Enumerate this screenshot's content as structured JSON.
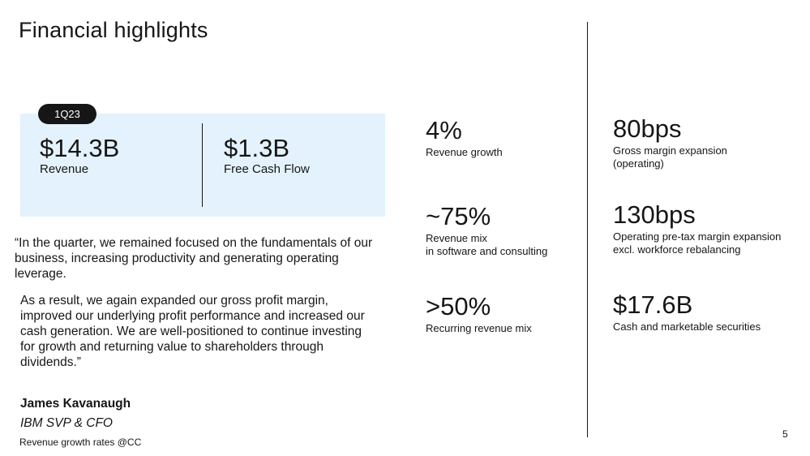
{
  "title": "Financial highlights",
  "highlight": {
    "badge": "1Q23",
    "revenue_value": "$14.3B",
    "revenue_label": "Revenue",
    "fcf_value": "$1.3B",
    "fcf_label": "Free Cash Flow"
  },
  "quote": {
    "para1": "“In the quarter, we remained focused on the fundamentals of our business, increasing productivity and generating operating leverage.",
    "para2": "As a result, we again expanded our gross profit margin, improved our underlying profit performance and increased our cash generation. We are well-positioned to continue investing for growth and returning value to shareholders through dividends.”",
    "author_name": "James Kavanaugh",
    "author_title": "IBM SVP & CFO"
  },
  "footnote": "Revenue growth rates @CC",
  "metrics_left": [
    {
      "value": "4%",
      "label1": "Revenue growth",
      "label2": ""
    },
    {
      "value": "~75%",
      "label1": "Revenue mix",
      "label2": "in software and consulting"
    },
    {
      "value": ">50%",
      "label1": "Recurring revenue mix",
      "label2": ""
    }
  ],
  "metrics_right": [
    {
      "value": "80bps",
      "label1": "Gross margin expansion",
      "label2": "(operating)"
    },
    {
      "value": "130bps",
      "label1": "Operating pre-tax margin expansion",
      "label2": "excl. workforce rebalancing"
    },
    {
      "value": "$17.6B",
      "label1": "Cash and marketable securities",
      "label2": ""
    }
  ],
  "page_number": "5"
}
